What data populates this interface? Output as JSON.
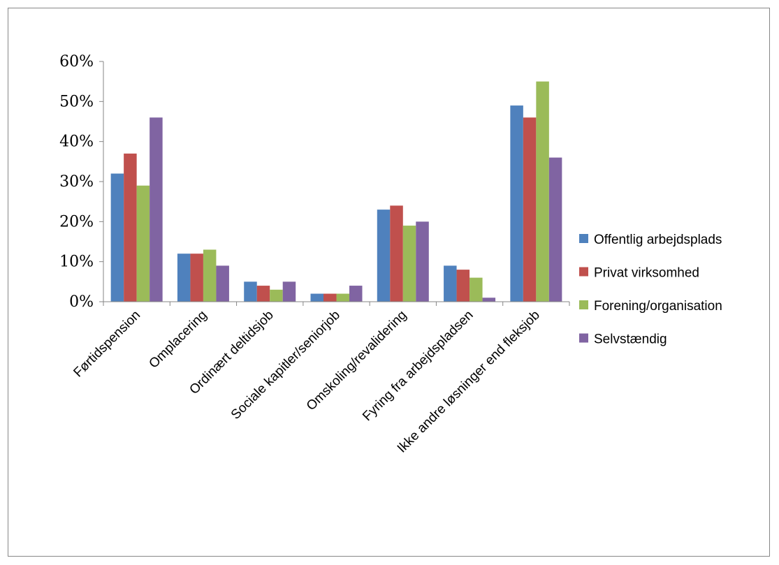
{
  "chart_data": {
    "type": "bar",
    "categories": [
      "Førtidspension",
      "Omplacering",
      "Ordinært deltidsjob",
      "Sociale kapitler/seniorjob",
      "Omskoling/revalidering",
      "Fyring fra arbejdspladsen",
      "Ikke andre løsninger end fleksjob"
    ],
    "series": [
      {
        "name": "Offentlig arbejdsplads",
        "color": "#4F81BD",
        "values": [
          32,
          12,
          5,
          2,
          23,
          9,
          49
        ]
      },
      {
        "name": "Privat virksomhed",
        "color": "#C0504D",
        "values": [
          37,
          12,
          4,
          2,
          24,
          8,
          46
        ]
      },
      {
        "name": "Forening/organisation",
        "color": "#9BBB59",
        "values": [
          29,
          13,
          3,
          2,
          19,
          6,
          55
        ]
      },
      {
        "name": "Selvstændig",
        "color": "#8064A2",
        "values": [
          46,
          9,
          5,
          4,
          20,
          1,
          36
        ]
      }
    ],
    "yticks": [
      "0%",
      "10%",
      "20%",
      "30%",
      "40%",
      "50%",
      "60%"
    ],
    "ylim": [
      0,
      60
    ],
    "unit": "%",
    "title": "",
    "xlabel": "",
    "ylabel": "",
    "grid": false,
    "legend_position": "right"
  }
}
